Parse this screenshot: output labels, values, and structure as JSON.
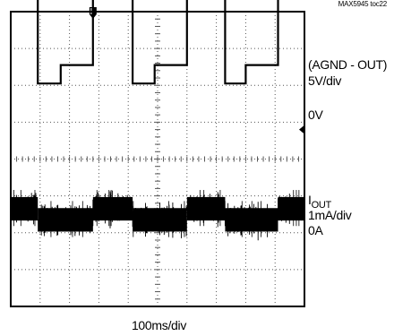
{
  "figure_id": "MAX5945 toc22",
  "chart_data": {
    "type": "line",
    "title": "",
    "xlabel": "100ms/div",
    "ylabel": "",
    "x_divisions": 10,
    "y_divisions": 8,
    "grid": true,
    "channels": [
      {
        "label": "(AGND - OUT)",
        "scale": "5V/div",
        "zero_label": "0V",
        "zero_div": 6.3,
        "levels_div": {
          "high": 8.35,
          "low": 6.55
        },
        "waveform": [
          [
            0,
            "high"
          ],
          [
            0.92,
            "high"
          ],
          [
            0.92,
            "low_dip"
          ],
          [
            1.7,
            "low_dip"
          ],
          [
            1.7,
            "low"
          ],
          [
            2.8,
            "low"
          ],
          [
            2.8,
            "high"
          ],
          [
            4.15,
            "high"
          ],
          [
            4.15,
            "low_dip"
          ],
          [
            4.9,
            "low_dip"
          ],
          [
            4.9,
            "low"
          ],
          [
            6.0,
            "low"
          ],
          [
            6.0,
            "high"
          ],
          [
            7.3,
            "high"
          ],
          [
            7.3,
            "low_dip"
          ],
          [
            8.0,
            "low_dip"
          ],
          [
            8.0,
            "low"
          ],
          [
            9.1,
            "low"
          ],
          [
            9.1,
            "high"
          ],
          [
            10,
            "high"
          ]
        ],
        "dip_offset_div": -0.5,
        "color": "#000000"
      },
      {
        "label": "IOUT",
        "label_main": "I",
        "label_sub": "OUT",
        "scale": "1mA/div",
        "zero_label": "0A",
        "segments_div": [
          {
            "x0": 0,
            "x1": 0.92,
            "y": 2.65
          },
          {
            "x0": 0.92,
            "x1": 2.8,
            "y": 2.35
          },
          {
            "x0": 2.8,
            "x1": 4.15,
            "y": 2.65
          },
          {
            "x0": 4.15,
            "x1": 6.0,
            "y": 2.35
          },
          {
            "x0": 6.0,
            "x1": 7.3,
            "y": 2.65
          },
          {
            "x0": 7.3,
            "x1": 9.1,
            "y": 2.35
          },
          {
            "x0": 9.1,
            "x1": 10,
            "y": 2.65
          }
        ],
        "noise_pp_div": 0.85,
        "color": "#000000"
      }
    ],
    "markers": [
      {
        "type": "trigger",
        "x_div": 2.8,
        "position": "top"
      },
      {
        "type": "ground",
        "y_div": 4.8,
        "position": "right"
      }
    ]
  }
}
